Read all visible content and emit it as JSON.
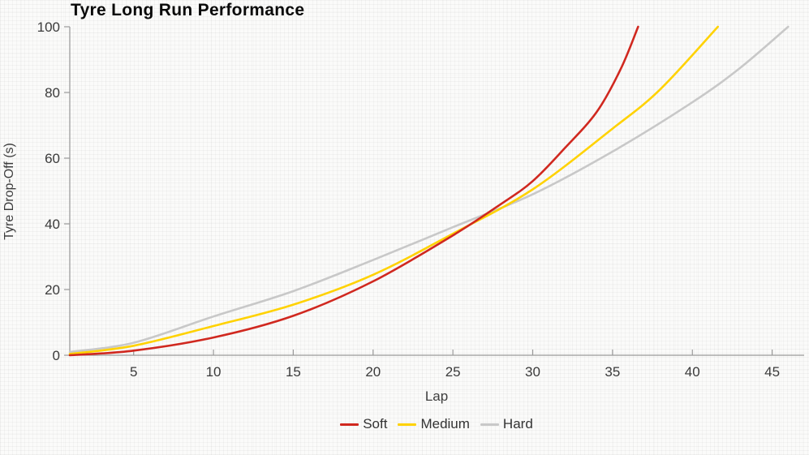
{
  "title": "Tyre Long Run Performance",
  "axes": {
    "x": {
      "label": "Lap",
      "tick_values": [
        5,
        10,
        15,
        20,
        25,
        30,
        35,
        40,
        45
      ],
      "min": 1,
      "max": 46.9
    },
    "y": {
      "label": "Tyre Drop-Off (s)",
      "tick_values": [
        0,
        20,
        40,
        60,
        80,
        100
      ],
      "min": 0,
      "max": 100
    }
  },
  "colors": {
    "soft": "#d0281f",
    "medium": "#ffd200",
    "hard": "#c8c8c8",
    "axis": "#999999",
    "tick_text": "#3a3a3a",
    "title_text": "#0a0a0a"
  },
  "legend": {
    "position": "bottom",
    "items": [
      {
        "label": "Soft",
        "color": "#d0281f"
      },
      {
        "label": "Medium",
        "color": "#ffd200"
      },
      {
        "label": "Hard",
        "color": "#c8c8c8"
      }
    ]
  },
  "chart_data": {
    "type": "line",
    "title": "Tyre Long Run Performance",
    "xlabel": "Lap",
    "ylabel": "Tyre Drop-Off (s)",
    "xlim": [
      1,
      46.9
    ],
    "ylim": [
      0,
      100
    ],
    "grid": false,
    "legend_position": "bottom",
    "series": [
      {
        "name": "Soft",
        "color": "#d0281f",
        "points": [
          [
            1,
            0
          ],
          [
            5,
            1.4
          ],
          [
            10,
            5.4
          ],
          [
            15,
            12
          ],
          [
            20,
            22.5
          ],
          [
            25,
            36.5
          ],
          [
            28,
            46
          ],
          [
            30,
            53
          ],
          [
            32,
            63
          ],
          [
            34,
            74
          ],
          [
            35.5,
            87
          ],
          [
            36.6,
            100
          ]
        ]
      },
      {
        "name": "Medium",
        "color": "#ffd200",
        "points": [
          [
            1,
            0.4
          ],
          [
            5,
            2.9
          ],
          [
            10,
            8.9
          ],
          [
            15,
            15.4
          ],
          [
            20,
            24.5
          ],
          [
            25,
            37
          ],
          [
            30,
            50.5
          ],
          [
            35,
            69
          ],
          [
            38,
            81
          ],
          [
            41.6,
            100
          ]
        ]
      },
      {
        "name": "Hard",
        "color": "#c8c8c8",
        "points": [
          [
            1,
            1
          ],
          [
            5,
            3.8
          ],
          [
            10,
            11.8
          ],
          [
            15,
            19.5
          ],
          [
            20,
            29
          ],
          [
            25,
            39
          ],
          [
            30,
            49
          ],
          [
            35,
            62
          ],
          [
            40,
            77
          ],
          [
            43,
            87.5
          ],
          [
            46,
            100
          ]
        ]
      }
    ]
  }
}
